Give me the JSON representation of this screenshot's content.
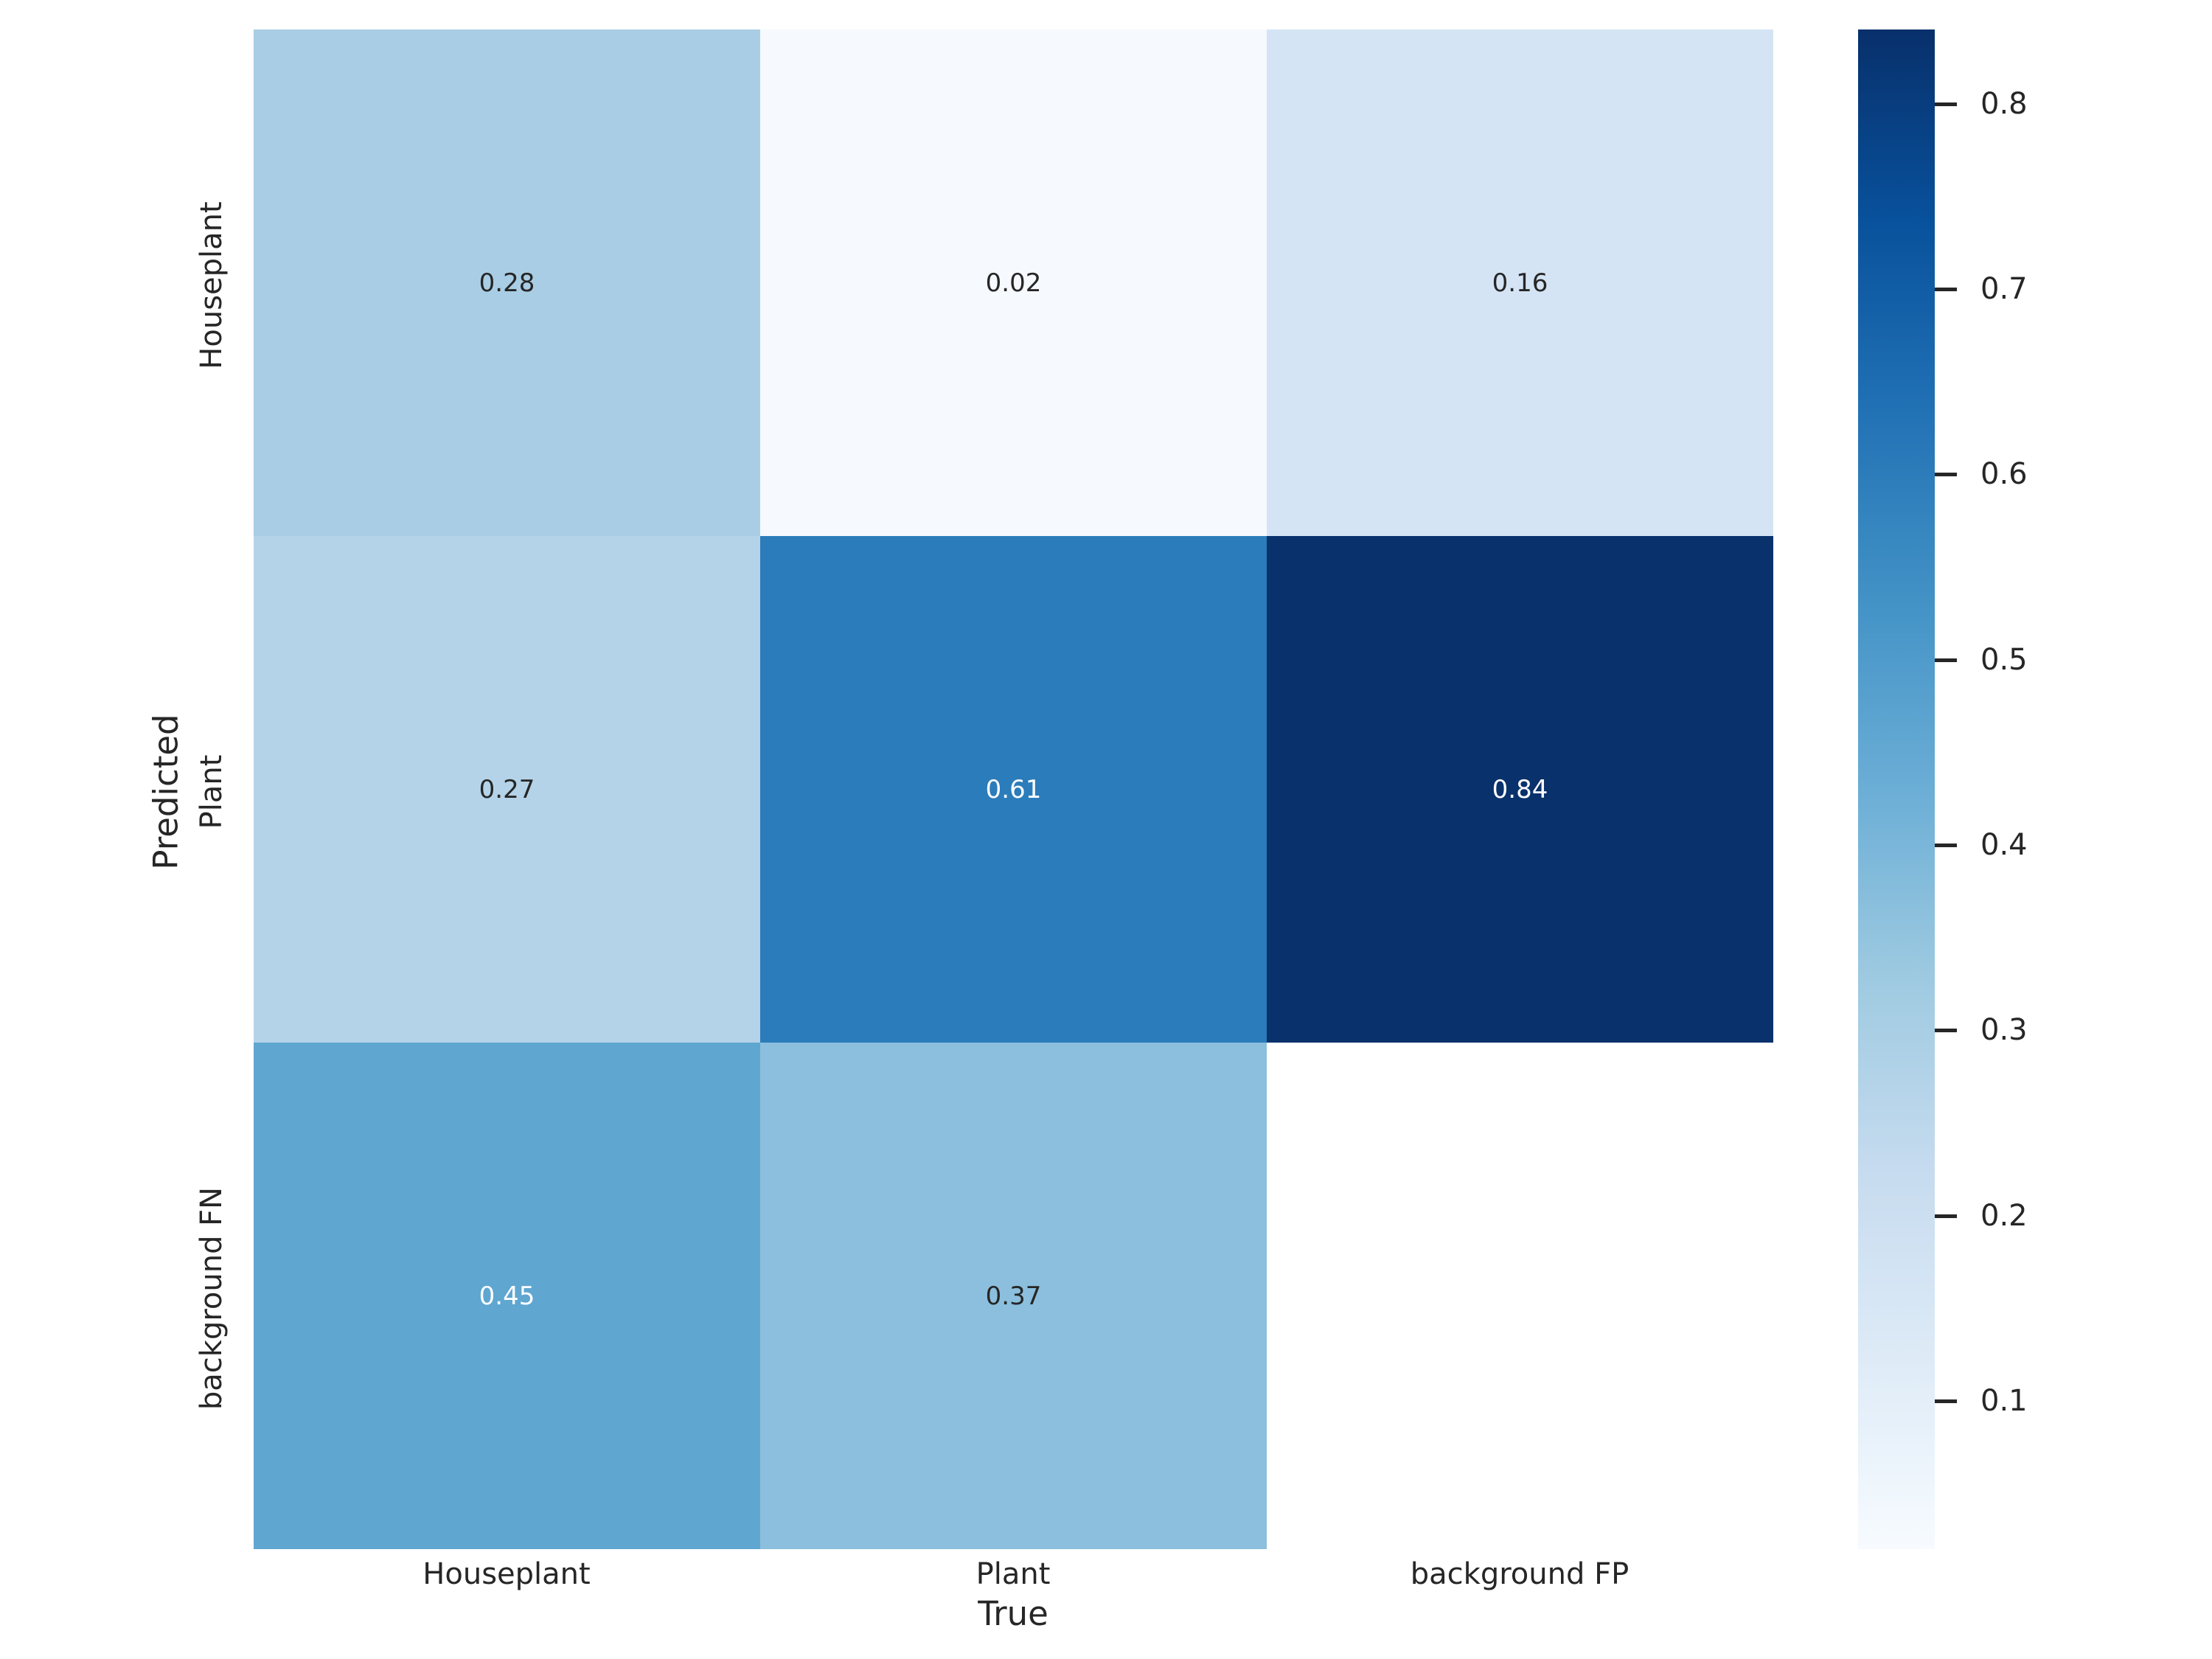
{
  "chart_data": {
    "type": "heatmap",
    "title": "",
    "xlabel": "True",
    "ylabel": "Predicted",
    "x_categories": [
      "Houseplant",
      "Plant",
      "background FP"
    ],
    "y_categories": [
      "Houseplant",
      "Plant",
      "background FN"
    ],
    "values": [
      [
        0.28,
        0.02,
        0.16
      ],
      [
        0.27,
        0.61,
        0.84
      ],
      [
        0.45,
        0.37,
        null
      ]
    ],
    "cells": [
      {
        "label": "0.28",
        "bg": "#a9cde4",
        "fg": "#262626"
      },
      {
        "label": "0.02",
        "bg": "#f6f9fd",
        "fg": "#262626"
      },
      {
        "label": "0.16",
        "bg": "#d4e4f4",
        "fg": "#262626"
      },
      {
        "label": "0.27",
        "bg": "#b4d3e8",
        "fg": "#262626"
      },
      {
        "label": "0.61",
        "bg": "#2b7cba",
        "fg": "#ffffff"
      },
      {
        "label": "0.84",
        "bg": "#09316b",
        "fg": "#ffffff"
      },
      {
        "label": "0.45",
        "bg": "#5fa6d1",
        "fg": "#ffffff"
      },
      {
        "label": "0.37",
        "bg": "#8bbfdd",
        "fg": "#262626"
      },
      {
        "label": "",
        "bg": "#ffffff",
        "fg": "#262626"
      }
    ],
    "colormap": "Blues",
    "grid": false,
    "legend_position": "colorbar-right",
    "colorbar": {
      "vmin": 0.02,
      "vmax": 0.84,
      "ticks": [
        "0.8",
        "0.7",
        "0.6",
        "0.5",
        "0.4",
        "0.3",
        "0.2",
        "0.1"
      ],
      "gradient_stops": [
        "#08306b",
        "#08519c",
        "#2171b5",
        "#4292c6",
        "#6baed6",
        "#9ecae1",
        "#c6dbef",
        "#deebf7",
        "#f7fbff"
      ]
    }
  }
}
